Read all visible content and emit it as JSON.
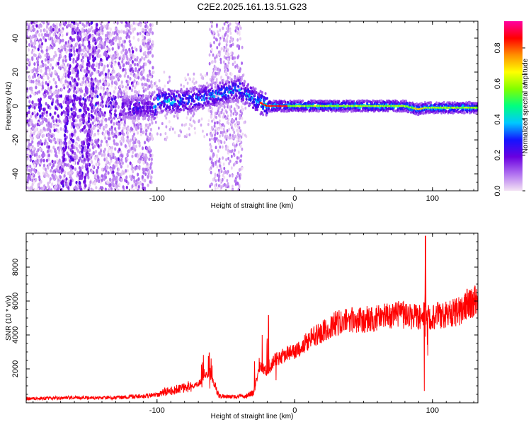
{
  "title": "C2E2.2025.161.13.51.G23",
  "chart_data": [
    {
      "type": "heatmap",
      "title": "C2E2.2025.161.13.51.G23",
      "xlabel": "Height of straight line (km)",
      "ylabel": "Frequency (Hz)",
      "xlim": [
        -195,
        133
      ],
      "ylim": [
        -50,
        50
      ],
      "xticks": [
        -100,
        0,
        100
      ],
      "yticks": [
        -40,
        -20,
        0,
        20,
        40
      ],
      "colorbar": {
        "label": "Normalized spectral amplitude",
        "range": [
          0.0,
          0.95
        ],
        "ticks": [
          0.0,
          0.2,
          0.4,
          0.6,
          0.8
        ],
        "stops": [
          "#f4e4f4",
          "#b070f0",
          "#6a00e0",
          "#1414ff",
          "#00c8ff",
          "#00ff80",
          "#80ff00",
          "#ffff00",
          "#ff9000",
          "#ff0000",
          "#ff00a0"
        ]
      },
      "ridge": {
        "description_x": [
          -100,
          -80,
          -60,
          -40,
          -30,
          -20,
          0,
          20,
          40,
          60,
          80,
          90,
          95,
          100,
          120,
          133
        ],
        "center_hz": [
          3,
          3,
          6,
          10,
          4,
          0,
          0,
          0,
          0,
          0,
          0,
          -2,
          -1,
          -1,
          -1,
          -1
        ]
      }
    },
    {
      "type": "line",
      "xlabel": "Height of straight line (km)",
      "ylabel": "SNR (10 * v/v)",
      "xlim": [
        -195,
        133
      ],
      "ylim": [
        0,
        10000
      ],
      "xticks": [
        -100,
        0,
        100
      ],
      "yticks": [
        2000,
        4000,
        6000,
        8000
      ],
      "color": "#ff0000",
      "series": [
        {
          "name": "SNR",
          "x": [
            -195,
            -160,
            -130,
            -100,
            -95,
            -90,
            -80,
            -70,
            -62,
            -55,
            -45,
            -35,
            -30,
            -25,
            -20,
            -15,
            -10,
            -5,
            0,
            10,
            20,
            30,
            40,
            50,
            60,
            70,
            80,
            90,
            93,
            95,
            97,
            100,
            110,
            120,
            125,
            130,
            133
          ],
          "y": [
            250,
            300,
            300,
            450,
            650,
            700,
            900,
            1100,
            1800,
            400,
            350,
            400,
            600,
            2200,
            1800,
            2500,
            2700,
            2900,
            3000,
            3700,
            4200,
            4700,
            4850,
            4900,
            5000,
            5100,
            5200,
            5100,
            5300,
            5000,
            5000,
            5100,
            5200,
            5400,
            5800,
            6000,
            6000
          ]
        }
      ],
      "spikes": [
        {
          "x": -62,
          "y": 2950
        },
        {
          "x": -19,
          "y": 5150
        },
        {
          "x": 95,
          "y": 9850
        },
        {
          "x": 94,
          "y": 700
        }
      ]
    }
  ]
}
